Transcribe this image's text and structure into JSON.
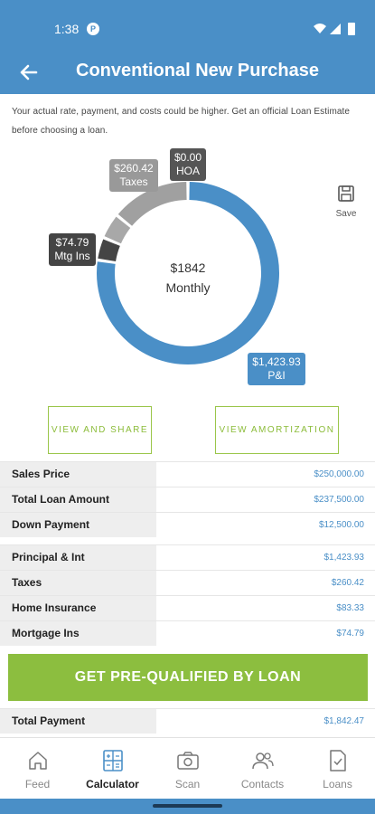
{
  "status_bar": {
    "time": "1:38",
    "app_icon_glyph": "P"
  },
  "app_bar": {
    "title": "Conventional New Purchase",
    "back_icon": "arrow-left-icon"
  },
  "disclaimer": "Your actual rate, payment, and costs could be higher. Get an official Loan Estimate before choosing a loan.",
  "chart": {
    "center_amount": "$1842",
    "center_label": "Monthly",
    "callouts": {
      "taxes": {
        "amount": "$260.42",
        "label": "Taxes"
      },
      "hoa": {
        "amount": "$0.00",
        "label": "HOA"
      },
      "mtg_ins": {
        "amount": "$74.79",
        "label": "Mtg Ins"
      },
      "pi": {
        "amount": "$1,423.93",
        "label": "P&I"
      }
    },
    "save_label": "Save"
  },
  "chart_data": {
    "type": "pie",
    "categories": [
      "P&I",
      "Mtg Ins",
      "Home Insurance",
      "Taxes",
      "HOA"
    ],
    "values": [
      1423.93,
      74.79,
      83.33,
      260.42,
      0.0
    ],
    "colors": [
      "#4a8fc7",
      "#454545",
      "#a8a8a8",
      "#a0a0a0",
      "#555555"
    ],
    "center_text": "$1842 Monthly"
  },
  "buttons": {
    "view_share": "VIEW AND SHARE",
    "view_amortization": "VIEW AMORTIZATION",
    "cta": "GET PRE-QUALIFIED BY LOAN"
  },
  "loan_summary": [
    {
      "label": "Sales Price",
      "value": "$250,000.00"
    },
    {
      "label": "Total Loan Amount",
      "value": "$237,500.00"
    },
    {
      "label": "Down Payment",
      "value": "$12,500.00"
    }
  ],
  "payment_breakdown": [
    {
      "label": "Principal & Int",
      "value": "$1,423.93"
    },
    {
      "label": "Taxes",
      "value": "$260.42"
    },
    {
      "label": "Home Insurance",
      "value": "$83.33"
    },
    {
      "label": "Mortgage Ins",
      "value": "$74.79"
    }
  ],
  "total": {
    "label": "Total Payment",
    "value": "$1,842.47"
  },
  "nav": [
    {
      "label": "Feed",
      "icon": "home-icon",
      "active": false
    },
    {
      "label": "Calculator",
      "icon": "calculator-icon",
      "active": true
    },
    {
      "label": "Scan",
      "icon": "camera-icon",
      "active": false
    },
    {
      "label": "Contacts",
      "icon": "contacts-icon",
      "active": false
    },
    {
      "label": "Loans",
      "icon": "document-check-icon",
      "active": false
    }
  ],
  "colors": {
    "primary": "#4a8fc7",
    "accent": "#8cbe3f",
    "label_bg": "#eeeeee"
  }
}
